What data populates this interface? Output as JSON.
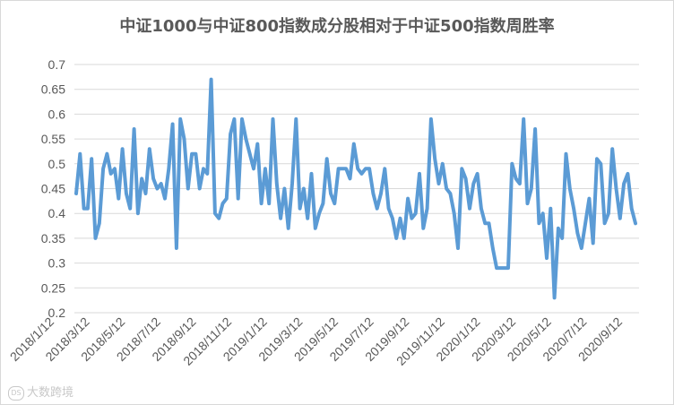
{
  "chart_data": {
    "type": "line",
    "title": "中证1000与中证800指数成分股相对于中证500指数周胜率",
    "xlabel": "",
    "ylabel": "",
    "ylim": [
      0.2,
      0.7
    ],
    "yticks": [
      "0.2",
      "0.25",
      "0.3",
      "0.35",
      "0.4",
      "0.45",
      "0.5",
      "0.55",
      "0.6",
      "0.65",
      "0.7"
    ],
    "grid": true,
    "legend": "none",
    "x_tick_labels": [
      "2018/1/12",
      "2018/3/12",
      "2018/5/12",
      "2018/7/12",
      "2018/9/12",
      "2018/11/12",
      "2019/1/12",
      "2019/3/12",
      "2019/5/12",
      "2019/7/12",
      "2019/9/12",
      "2019/11/12",
      "2020/1/12",
      "2020/3/12",
      "2020/5/12",
      "2020/7/12",
      "2020/9/12"
    ],
    "series_color": "#5b9bd5",
    "series": [
      {
        "values": [
          0.44,
          0.52,
          0.41,
          0.41,
          0.51,
          0.35,
          0.38,
          0.49,
          0.52,
          0.48,
          0.49,
          0.43,
          0.53,
          0.44,
          0.41,
          0.57,
          0.4,
          0.47,
          0.44,
          0.53,
          0.47,
          0.45,
          0.46,
          0.43,
          0.49,
          0.58,
          0.33,
          0.59,
          0.55,
          0.45,
          0.52,
          0.52,
          0.45,
          0.49,
          0.48,
          0.67,
          0.4,
          0.39,
          0.42,
          0.43,
          0.56,
          0.59,
          0.43,
          0.59,
          0.55,
          0.52,
          0.49,
          0.54,
          0.42,
          0.49,
          0.42,
          0.59,
          0.46,
          0.39,
          0.45,
          0.37,
          0.46,
          0.59,
          0.41,
          0.45,
          0.39,
          0.48,
          0.37,
          0.4,
          0.42,
          0.51,
          0.44,
          0.42,
          0.49,
          0.49,
          0.49,
          0.47,
          0.54,
          0.49,
          0.48,
          0.49,
          0.49,
          0.44,
          0.41,
          0.44,
          0.49,
          0.41,
          0.39,
          0.35,
          0.39,
          0.35,
          0.43,
          0.39,
          0.4,
          0.48,
          0.37,
          0.41,
          0.59,
          0.51,
          0.46,
          0.5,
          0.45,
          0.44,
          0.4,
          0.33,
          0.49,
          0.47,
          0.41,
          0.46,
          0.48,
          0.41,
          0.38,
          0.38,
          0.33,
          0.29,
          0.29,
          0.29,
          0.29,
          0.5,
          0.47,
          0.46,
          0.59,
          0.42,
          0.45,
          0.57,
          0.38,
          0.4,
          0.31,
          0.41,
          0.23,
          0.37,
          0.35,
          0.52,
          0.45,
          0.41,
          0.36,
          0.33,
          0.38,
          0.43,
          0.34,
          0.51,
          0.5,
          0.38,
          0.4,
          0.53,
          0.45,
          0.39,
          0.46,
          0.48,
          0.41,
          0.38
        ]
      }
    ]
  },
  "watermark": {
    "text": "大数跨境",
    "icon": "circle-logo-icon",
    "icon_text": "DS"
  }
}
